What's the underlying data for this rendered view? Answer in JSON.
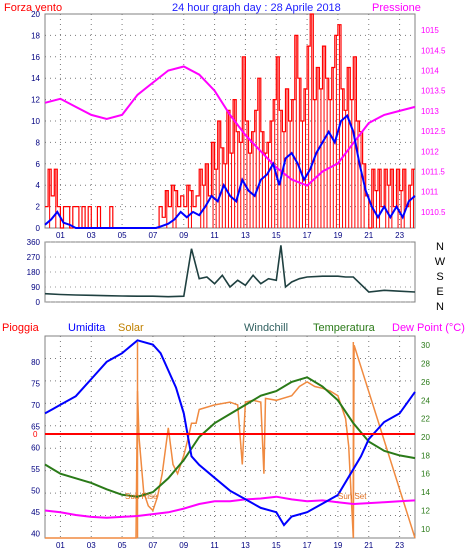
{
  "colors": {
    "wind": "#ff0000",
    "wind_avg": "#0000ff",
    "pressure": "#ff00ff",
    "direction": "#1f4040",
    "rain": "#ff0000",
    "humidity": "#0000ff",
    "solar": "#f08a40",
    "windchill": "#2f5f5f",
    "temperature": "#2a7a18",
    "dewpoint": "#ff00ff",
    "frame": "#808080",
    "title_blue": "#2020ff"
  },
  "header": {
    "left_label": "Forza vento",
    "title": "24 hour graph day : 28 Aprile 2018",
    "right_label": "Pressione"
  },
  "bottom_header": {
    "rain": "Pioggia",
    "humidity": "Umidita",
    "solar": "Solar",
    "windchill": "Windchill",
    "temperature": "Temperatura",
    "dewpoint": "Dew Point (°C)"
  },
  "annotations": {
    "sunrise": "Sun Rise",
    "sunset": "Sun Set",
    "rain_value": "0"
  },
  "chart_data": [
    {
      "type": "line",
      "name": "wind_pressure",
      "x_ticks": [
        "01",
        "03",
        "05",
        "07",
        "09",
        "11",
        "13",
        "15",
        "17",
        "19",
        "21",
        "23"
      ],
      "left_ticks": [
        "0",
        "2",
        "4",
        "6",
        "8",
        "10",
        "12",
        "14",
        "16",
        "18",
        "20"
      ],
      "right_ticks": [
        "1010.5",
        "1011",
        "1011.5",
        "1012",
        "1012.5",
        "1013",
        "1013.5",
        "1014",
        "1014.5",
        "1015"
      ],
      "ylim_left": [
        0,
        20
      ],
      "ylim_right": [
        1010.1,
        1015.4
      ],
      "xlim": [
        0,
        24
      ],
      "grid": true,
      "gust_series": {
        "x": [
          0.0,
          0.2,
          0.4,
          0.6,
          0.8,
          1.0,
          1.2,
          1.4,
          1.6,
          1.8,
          2.0,
          2.2,
          2.4,
          2.6,
          2.8,
          3.0,
          3.2,
          3.4,
          3.6,
          3.8,
          4.0,
          4.2,
          4.4,
          4.6,
          4.8,
          5.0,
          5.2,
          5.4,
          5.6,
          5.8,
          6.0,
          6.2,
          6.4,
          6.6,
          6.8,
          7.0,
          7.2,
          7.4,
          7.6,
          7.8,
          8.0,
          8.2,
          8.4,
          8.6,
          8.8,
          9.0,
          9.2,
          9.4,
          9.6,
          9.8,
          10.0,
          10.2,
          10.4,
          10.6,
          10.8,
          11.0,
          11.2,
          11.4,
          11.6,
          11.8,
          12.0,
          12.2,
          12.4,
          12.6,
          12.8,
          13.0,
          13.2,
          13.4,
          13.6,
          13.8,
          14.0,
          14.2,
          14.4,
          14.6,
          14.8,
          15.0,
          15.2,
          15.4,
          15.6,
          15.8,
          16.0,
          16.2,
          16.4,
          16.6,
          16.8,
          17.0,
          17.2,
          17.4,
          17.6,
          17.8,
          18.0,
          18.2,
          18.4,
          18.6,
          18.8,
          19.0,
          19.2,
          19.4,
          19.6,
          19.8,
          20.0,
          20.2,
          20.4,
          20.6,
          20.8,
          21.0,
          21.2,
          21.4,
          21.6,
          21.8,
          22.0,
          22.2,
          22.4,
          22.6,
          22.8,
          23.0,
          23.2,
          23.4,
          23.6,
          23.8
        ],
        "values": [
          2,
          5.5,
          3,
          5.5,
          2,
          0,
          2,
          2,
          0,
          2,
          2,
          0,
          2,
          0,
          2,
          0,
          0,
          2,
          0,
          0,
          0,
          2,
          0,
          0,
          0,
          0,
          0,
          0,
          0,
          0,
          0,
          0,
          0,
          0,
          0,
          0,
          0,
          2,
          1,
          3.5,
          2,
          4,
          3.5,
          2,
          3,
          2,
          4,
          3.5,
          2,
          3,
          5.5,
          4,
          6,
          3,
          8,
          5.5,
          10,
          7.5,
          6,
          11,
          7,
          12,
          9,
          8,
          16,
          10,
          7,
          9,
          11,
          14,
          9,
          7,
          8,
          10,
          12,
          16,
          11,
          9,
          13,
          10,
          12,
          18,
          14,
          10,
          13,
          17,
          20,
          12,
          15,
          13,
          17,
          14,
          12,
          15,
          18,
          19,
          13,
          11,
          15,
          12,
          16,
          10,
          9,
          6,
          3,
          0,
          5.5,
          3.5,
          5.5,
          2,
          5.5,
          4,
          5.5,
          2,
          5.5,
          3.5,
          5.5,
          2,
          4,
          5.5
        ]
      },
      "average_series": {
        "x": [
          0.0,
          0.4,
          0.8,
          1.2,
          1.6,
          2.0,
          2.4,
          2.8,
          3.2,
          3.6,
          4.0,
          4.4,
          4.8,
          5.2,
          5.6,
          6.0,
          6.4,
          6.8,
          7.2,
          7.6,
          8.0,
          8.4,
          8.8,
          9.2,
          9.6,
          10.0,
          10.4,
          10.8,
          11.2,
          11.6,
          12.0,
          12.4,
          12.8,
          13.2,
          13.6,
          14.0,
          14.4,
          14.8,
          15.2,
          15.6,
          16.0,
          16.4,
          16.8,
          17.2,
          17.6,
          18.0,
          18.4,
          18.8,
          19.2,
          19.6,
          20.0,
          20.4,
          20.8,
          21.2,
          21.6,
          22.0,
          22.4,
          22.8,
          23.2,
          23.6,
          24.0
        ],
        "values": [
          0.3,
          0.8,
          1.5,
          0.5,
          0.3,
          0,
          0,
          0,
          0,
          0,
          0,
          0,
          0,
          0,
          0,
          0,
          0,
          0,
          0,
          0.2,
          0.4,
          0.8,
          1.5,
          1,
          1.5,
          1.2,
          2,
          3,
          2.5,
          4,
          3,
          2.5,
          4.5,
          3.5,
          3,
          4.5,
          5,
          6,
          4,
          6.5,
          7,
          6,
          4.5,
          5.5,
          7,
          8,
          9,
          8,
          10,
          10.5,
          9,
          6,
          3.5,
          2,
          1,
          2,
          1,
          2,
          1,
          2.5,
          3
        ]
      },
      "pressure_series": {
        "x": [
          0,
          1,
          2,
          3,
          4,
          5,
          6,
          7,
          8,
          9,
          10,
          11,
          12,
          13,
          14,
          15,
          16,
          17,
          18,
          19,
          20,
          21,
          22,
          23,
          24
        ],
        "values": [
          1013.2,
          1013.3,
          1013.1,
          1012.9,
          1012.8,
          1012.9,
          1013.4,
          1013.7,
          1014.0,
          1014.1,
          1013.9,
          1013.5,
          1012.9,
          1012.4,
          1012.0,
          1011.6,
          1011.3,
          1011.15,
          1011.5,
          1011.7,
          1012.2,
          1012.7,
          1012.9,
          1013.0,
          1013.1
        ]
      }
    },
    {
      "type": "line",
      "name": "wind_direction",
      "y_ticks": [
        "0",
        "90",
        "180",
        "270",
        "360"
      ],
      "compass": [
        "N",
        "W",
        "S",
        "E",
        "N"
      ],
      "ylim": [
        0,
        360
      ],
      "xlim": [
        0,
        24
      ],
      "x": [
        0,
        1,
        2,
        3,
        4,
        5,
        6,
        7,
        8,
        9,
        9.5,
        10,
        10.5,
        11,
        11.5,
        12,
        12.5,
        13,
        13.5,
        14,
        14.5,
        15,
        15.3,
        15.6,
        16,
        16.5,
        17,
        18,
        19,
        19.5,
        20,
        21,
        22,
        23,
        24
      ],
      "values": [
        50,
        45,
        42,
        40,
        38,
        36,
        35,
        35,
        32,
        35,
        320,
        140,
        150,
        110,
        160,
        90,
        130,
        100,
        160,
        110,
        140,
        130,
        340,
        90,
        120,
        140,
        150,
        155,
        155,
        150,
        150,
        60,
        70,
        65,
        60
      ]
    },
    {
      "type": "line",
      "name": "humidity_temperature",
      "x_ticks": [
        "01",
        "03",
        "05",
        "07",
        "09",
        "11",
        "13",
        "15",
        "17",
        "19",
        "21",
        "23"
      ],
      "left_ticks": [
        "40",
        "45",
        "50",
        "55",
        "60",
        "65",
        "70",
        "75",
        "80"
      ],
      "right_ticks": [
        "10",
        "12",
        "14",
        "16",
        "18",
        "20",
        "22",
        "24",
        "26",
        "28",
        "30"
      ],
      "ylim_left": [
        39,
        86
      ],
      "ylim_right": [
        9,
        31
      ],
      "xlim": [
        0,
        24
      ],
      "grid": true,
      "rain_value": 0,
      "sunrise_hour": 6.0,
      "sunset_hour": 20.0,
      "humidity": {
        "x": [
          0,
          0.5,
          1,
          2,
          3,
          4,
          4.5,
          5,
          6,
          7,
          7.5,
          8,
          8.5,
          9,
          9.5,
          10,
          11,
          12,
          13,
          14,
          15,
          15.5,
          16,
          17,
          18,
          19,
          20,
          20.5,
          21,
          22,
          23,
          24
        ],
        "values": [
          68,
          69,
          70,
          72,
          76,
          80,
          81,
          82,
          85,
          84,
          82,
          78,
          74,
          68,
          58,
          56,
          53,
          50,
          48,
          46,
          45,
          42,
          44,
          45,
          47,
          49,
          55,
          58,
          62,
          66,
          68,
          73
        ]
      },
      "solar": {
        "x": [
          0,
          5.9,
          6.0,
          6.1,
          6.4,
          6.7,
          7,
          7.3,
          7.6,
          8,
          8.3,
          8.6,
          9,
          9.3,
          9.5,
          9.8,
          10,
          11,
          12,
          12.5,
          12.8,
          13,
          13.5,
          14,
          14.2,
          14.3,
          15,
          16,
          16.5,
          17,
          17.5,
          18,
          18.5,
          19,
          19.5,
          19.7,
          20.0,
          20.05,
          24
        ],
        "values": [
          9,
          9,
          25,
          20,
          14,
          12.5,
          12,
          13.5,
          16,
          21,
          17,
          16,
          18,
          20,
          21.5,
          21.5,
          23,
          23.5,
          23.8,
          23.5,
          17,
          23.8,
          24,
          23.8,
          16,
          24.2,
          24,
          24.5,
          25.5,
          26,
          25.5,
          25.3,
          25,
          24.5,
          22,
          19,
          9,
          30,
          9
        ]
      },
      "windchill": {
        "x": [
          0,
          1,
          2,
          3,
          4,
          5,
          6,
          7,
          8,
          9,
          10,
          11,
          12,
          13,
          14,
          15,
          16,
          17,
          18,
          19,
          20,
          21,
          22,
          23,
          24
        ],
        "values": [
          17,
          16,
          15.5,
          15,
          14.3,
          13.7,
          13.5,
          14,
          15.5,
          17.5,
          20,
          21.5,
          22.5,
          23.5,
          24.5,
          25,
          26,
          26.5,
          25.5,
          24,
          21.5,
          19.5,
          18.5,
          18,
          17.7
        ]
      },
      "temperature": {
        "x": [
          0,
          1,
          2,
          3,
          4,
          5,
          6,
          7,
          8,
          9,
          10,
          11,
          12,
          13,
          14,
          15,
          16,
          17,
          18,
          19,
          20,
          21,
          22,
          23,
          24
        ],
        "values": [
          17,
          16,
          15.5,
          15,
          14.3,
          13.7,
          13.5,
          14,
          15.5,
          17.5,
          20,
          21.5,
          22.5,
          23.5,
          24.5,
          25,
          26,
          26.5,
          25.5,
          24,
          21.5,
          19.5,
          18.5,
          18,
          17.7
        ]
      },
      "dewpoint": {
        "x": [
          0,
          1,
          2,
          3,
          4,
          5,
          6,
          7,
          8,
          9,
          10,
          11,
          12,
          13,
          14,
          15,
          16,
          17,
          18,
          19,
          20,
          21,
          22,
          23,
          24
        ],
        "values": [
          12,
          11.8,
          11.5,
          11.3,
          11.2,
          11.3,
          11.4,
          11.6,
          11.8,
          12.2,
          12.7,
          13,
          13,
          13.2,
          13.3,
          13.5,
          13.2,
          13,
          13.1,
          12.9,
          12.7,
          12.8,
          12.9,
          13.0,
          13.1
        ]
      }
    }
  ]
}
